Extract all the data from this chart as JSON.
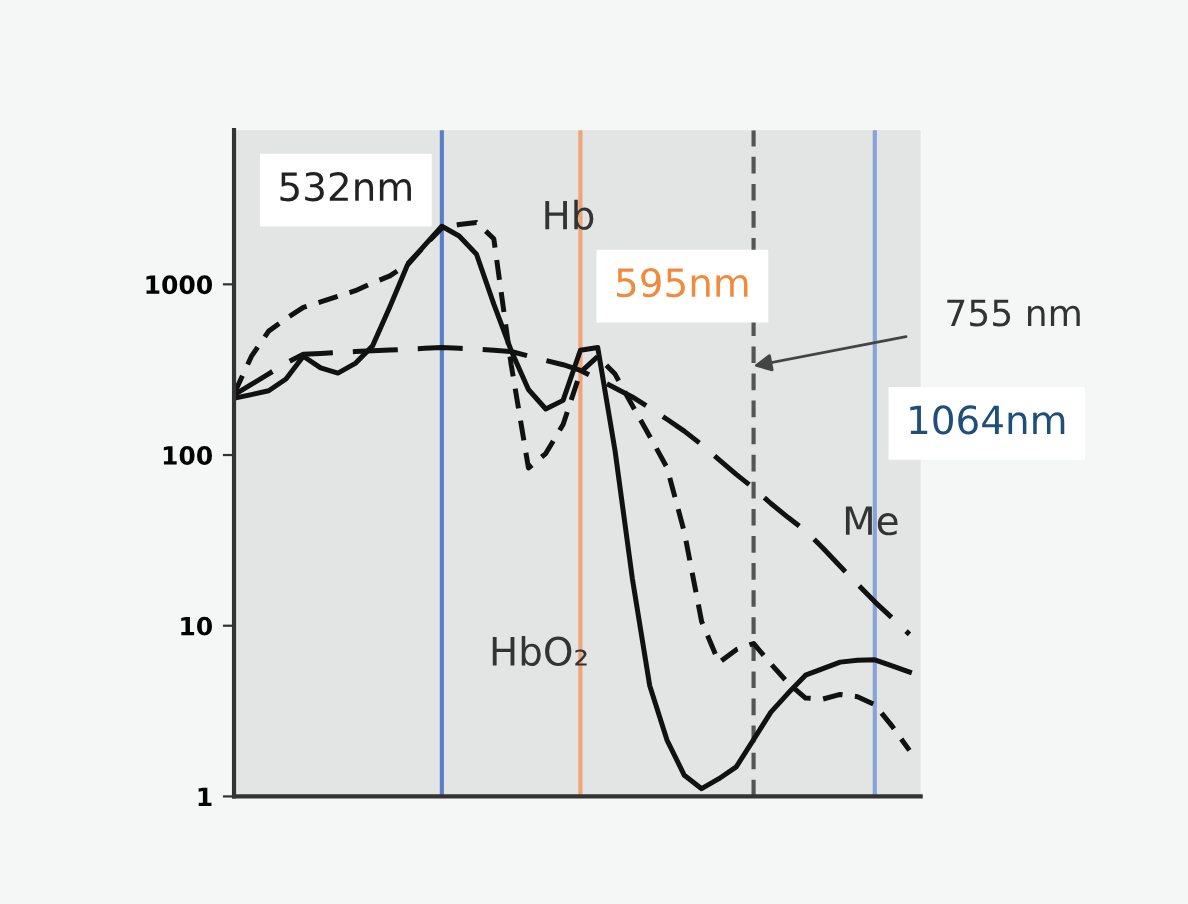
{
  "chart_data": {
    "type": "line",
    "log": true,
    "ylim": [
      1,
      8000
    ],
    "yticks": [
      1,
      10,
      100,
      1000
    ],
    "tick_labels": "y",
    "marker": "none",
    "categories": [
      null,
      null,
      null,
      null,
      null,
      null,
      null,
      null,
      null,
      null,
      null,
      null,
      null,
      null,
      null,
      null,
      null,
      null,
      null,
      null,
      null,
      null,
      null,
      null,
      null,
      null,
      null,
      null,
      null,
      null,
      null,
      null,
      null,
      null,
      null,
      null,
      null,
      null,
      null,
      null
    ],
    "series": [
      {
        "name": "HbO₂",
        "color": "#111111",
        "line_style": "solid",
        "values": [
          215,
          226,
          238,
          279,
          379,
          324,
          302,
          344,
          436,
          738,
          1290,
          1690,
          2190,
          1920,
          1500,
          766,
          410,
          242,
          186,
          209,
          411,
          427,
          106,
          18.9,
          4.47,
          2.14,
          1.33,
          1.11,
          1.27,
          1.49,
          2.15,
          3.12,
          4.03,
          5.13,
          5.6,
          6.12,
          6.28,
          6.31,
          5.81,
          5.36
        ]
      },
      {
        "name": "Hb",
        "color": "#111111",
        "line_style": "dashed",
        "values": [
          228,
          378,
          532,
          630,
          733,
          789,
          851,
          918,
          1020,
          1120,
          1310,
          1680,
          2140,
          2240,
          2300,
          1850,
          340,
          84,
          102,
          151,
          305,
          378,
          298,
          195,
          129,
          84.5,
          35.4,
          10.6,
          6.08,
          7.24,
          7.87,
          5.97,
          4.61,
          3.77,
          3.72,
          3.96,
          3.84,
          3.45,
          2.58,
          1.86
        ]
      },
      {
        "name": "Me",
        "color": "#111111",
        "line_style": "longdash",
        "values": [
          225,
          259,
          299,
          345,
          390,
          394,
          399,
          404,
          408,
          412,
          417,
          422,
          427,
          422,
          417,
          411,
          404,
          380,
          358,
          338,
          313,
          279,
          247,
          219,
          189,
          162,
          138,
          115,
          94,
          77,
          64,
          52,
          43,
          36,
          28.5,
          22.3,
          17.5,
          13.8,
          11.1,
          8.9
        ]
      }
    ],
    "annotations": [
      "532nm",
      "595nm",
      "755 nm",
      "1064nm"
    ]
  }
}
